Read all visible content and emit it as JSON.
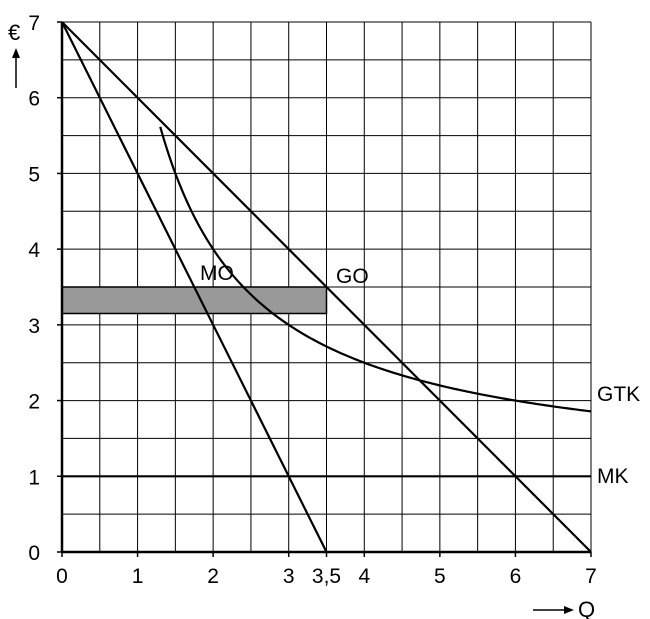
{
  "chart_data": {
    "type": "line",
    "title": "",
    "xlabel": "Q",
    "ylabel": "€",
    "xlim": [
      0,
      7
    ],
    "ylim": [
      0,
      7
    ],
    "x_ticks": [
      "0",
      "1",
      "2",
      "3",
      "3,5",
      "4",
      "5",
      "6",
      "7"
    ],
    "x_tick_values": [
      0,
      1,
      2,
      3,
      3.5,
      4,
      5,
      6,
      7
    ],
    "y_ticks": [
      "0",
      "1",
      "2",
      "3",
      "4",
      "5",
      "6",
      "7"
    ],
    "y_tick_values": [
      0,
      1,
      2,
      3,
      4,
      5,
      6,
      7
    ],
    "grid": true,
    "grid_step_x": 0.5,
    "grid_step_y": 0.5,
    "series": [
      {
        "name": "GO",
        "points": [
          [
            0,
            7
          ],
          [
            7,
            0
          ]
        ]
      },
      {
        "name": "MO",
        "points": [
          [
            0,
            7
          ],
          [
            3.5,
            0
          ]
        ]
      },
      {
        "name": "MK",
        "points": [
          [
            0,
            1
          ],
          [
            7,
            1
          ]
        ]
      },
      {
        "name": "GTK",
        "function": "1 + 6/Q",
        "domain": [
          1.3,
          7
        ]
      }
    ],
    "labels": {
      "mo": "MO",
      "go": "GO",
      "gtk": "GTK",
      "mk": "MK"
    },
    "shaded_area": {
      "x": [
        0,
        3.5
      ],
      "y": [
        3.15,
        3.5
      ],
      "color": "#999999"
    }
  }
}
